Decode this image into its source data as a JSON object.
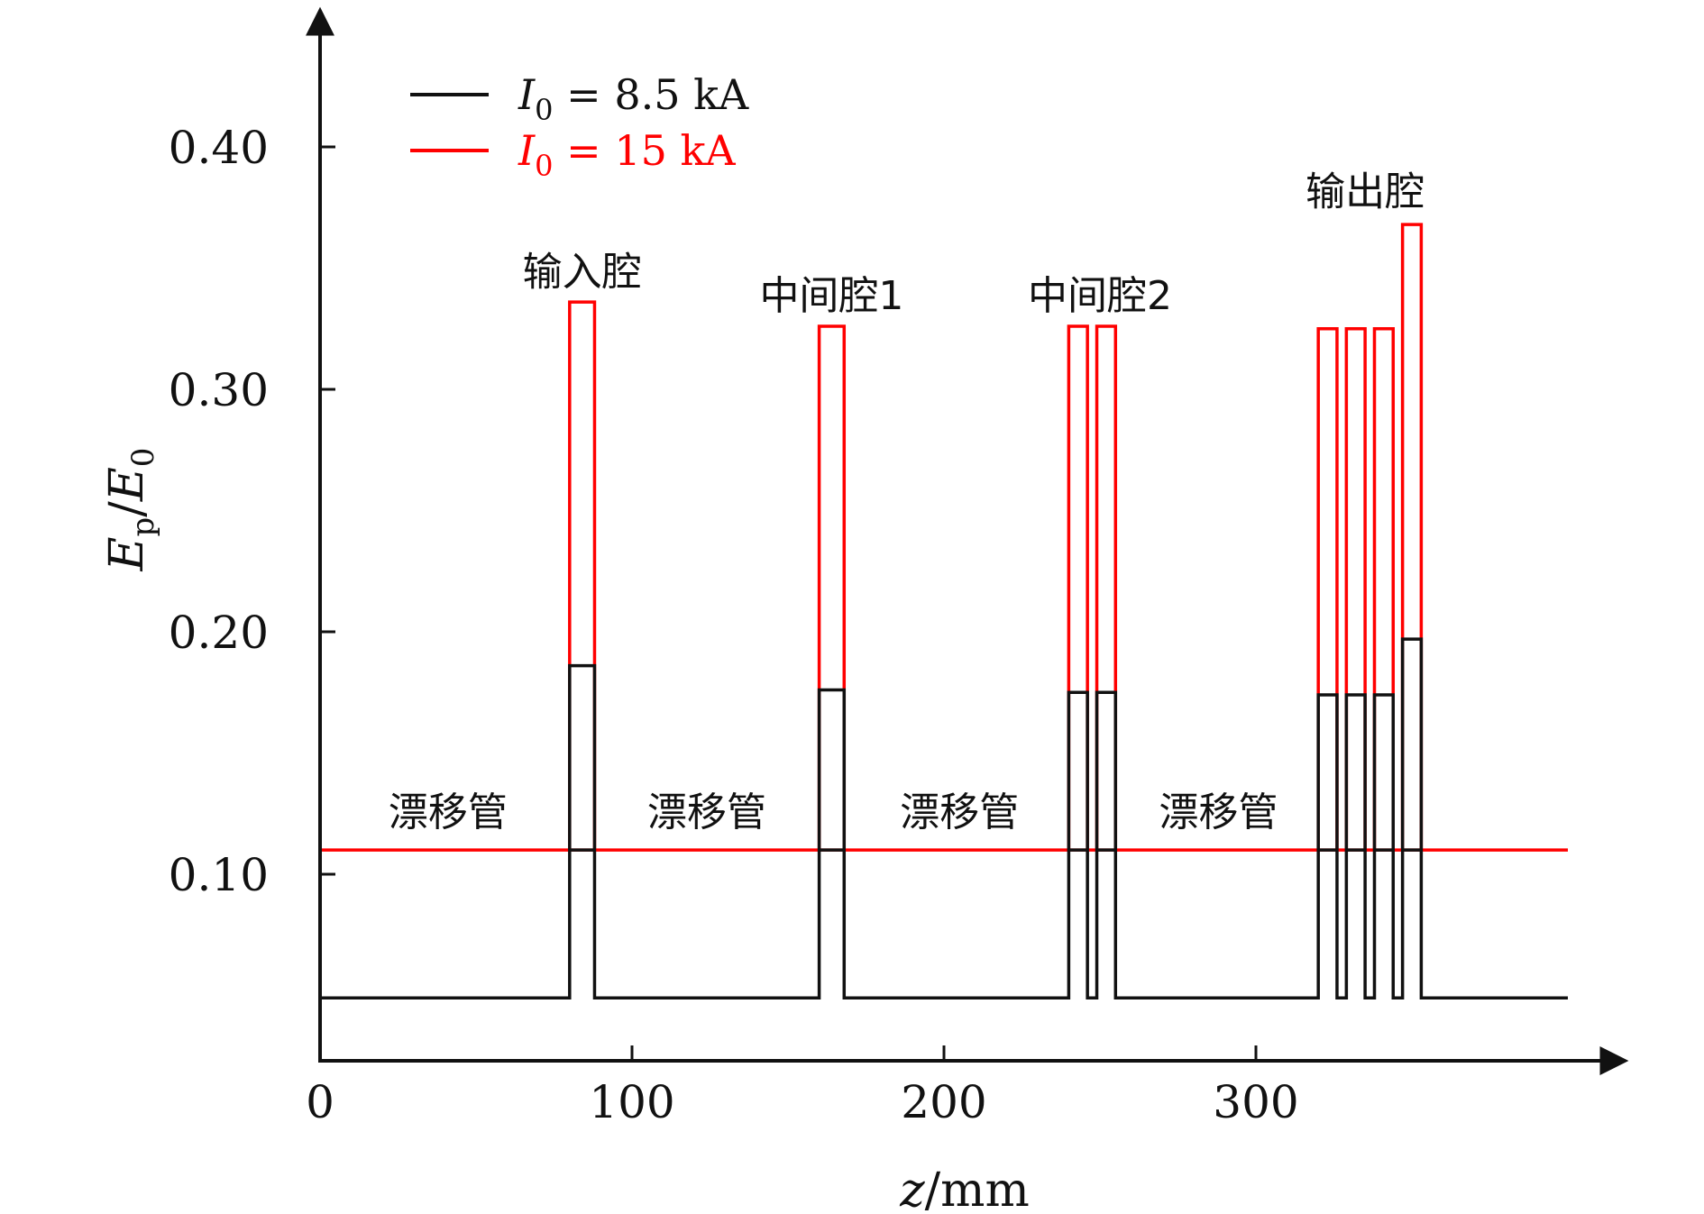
{
  "chart_data": {
    "type": "line",
    "title": "",
    "xlabel": "z/mm",
    "ylabel": "Ep/E0",
    "xlim": [
      0,
      400
    ],
    "ylim": [
      0.03,
      0.44
    ],
    "x_ticks": [
      0,
      100,
      200,
      300
    ],
    "x_tick_labels": [
      "0",
      "100",
      "200",
      "300"
    ],
    "y_ticks": [
      0.1,
      0.2,
      0.3,
      0.4
    ],
    "y_tick_labels": [
      "0.10",
      "0.20",
      "0.30",
      "0.40"
    ],
    "legend": {
      "placement": "top-left",
      "entries": [
        {
          "label_main": "I",
          "label_sub": "0",
          "label_rest": " = 8.5 kA",
          "color": "#111111"
        },
        {
          "label_main": "I",
          "label_sub": "0",
          "label_rest": " = 15 kA",
          "color": "#ff0000"
        }
      ]
    },
    "series": [
      {
        "name": "I0 = 8.5 kA",
        "color": "#111111",
        "baseline": 0.049,
        "gap_level": 0.11,
        "x_end": 400,
        "cavities": [
          {
            "x0": 80,
            "x1": 88,
            "level": 0.186
          },
          {
            "x0": 160,
            "x1": 168,
            "level": 0.176
          },
          {
            "x0": 240,
            "x1": 246,
            "level": 0.175
          },
          {
            "x0": 249,
            "x1": 255,
            "level": 0.175
          },
          {
            "x0": 320,
            "x1": 326,
            "level": 0.174
          },
          {
            "x0": 329,
            "x1": 335,
            "level": 0.174
          },
          {
            "x0": 338,
            "x1": 344,
            "level": 0.174
          },
          {
            "x0": 347,
            "x1": 353,
            "level": 0.197
          }
        ]
      },
      {
        "name": "I0 = 15 kA",
        "color": "#ff0000",
        "baseline": 0.11,
        "gap_level": 0.11,
        "x_end": 400,
        "cavities": [
          {
            "x0": 80,
            "x1": 88,
            "level": 0.336
          },
          {
            "x0": 160,
            "x1": 168,
            "level": 0.326
          },
          {
            "x0": 240,
            "x1": 246,
            "level": 0.326
          },
          {
            "x0": 249,
            "x1": 255,
            "level": 0.326
          },
          {
            "x0": 320,
            "x1": 326,
            "level": 0.325
          },
          {
            "x0": 329,
            "x1": 335,
            "level": 0.325
          },
          {
            "x0": 338,
            "x1": 344,
            "level": 0.325
          },
          {
            "x0": 347,
            "x1": 353,
            "level": 0.368
          }
        ]
      }
    ],
    "annotations": [
      {
        "text": "漂移管",
        "x": 41,
        "y": 0.12
      },
      {
        "text": "漂移管",
        "x": 124,
        "y": 0.12
      },
      {
        "text": "漂移管",
        "x": 205,
        "y": 0.12
      },
      {
        "text": "漂移管",
        "x": 288,
        "y": 0.12
      },
      {
        "text": "输入腔",
        "x": 84,
        "y": 0.343
      },
      {
        "text": "中间腔1",
        "x": 164,
        "y": 0.333
      },
      {
        "text": "中间腔2",
        "x": 250,
        "y": 0.333
      },
      {
        "text": "输出腔",
        "x": 335,
        "y": 0.376
      }
    ]
  }
}
